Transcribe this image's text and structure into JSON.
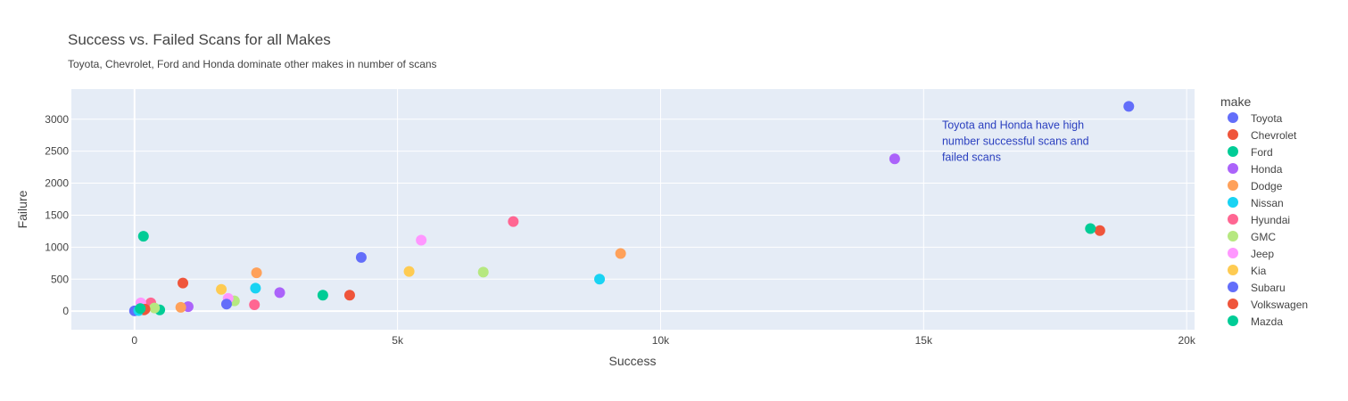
{
  "chart_data": {
    "type": "scatter",
    "title": "Success vs. Failed Scans for all Makes",
    "subtitle": "Toyota, Chevrolet, Ford and Honda dominate other makes in number of scans",
    "xlabel": "Success",
    "ylabel": "Failure",
    "xlim": [
      -1200,
      20150
    ],
    "ylim": [
      -290,
      3470
    ],
    "x_ticks": [
      0,
      5000,
      10000,
      15000,
      20000
    ],
    "x_tick_labels": [
      "0",
      "5k",
      "10k",
      "15k",
      "20k"
    ],
    "y_ticks": [
      0,
      500,
      1000,
      1500,
      2000,
      2500,
      3000
    ],
    "y_tick_labels": [
      "0",
      "500",
      "1000",
      "1500",
      "2000",
      "2500",
      "3000"
    ],
    "grid": true,
    "legend_title": "make",
    "legend_position": "right",
    "annotation": {
      "lines": [
        "Toyota and Honda have high",
        "number successful scans and",
        "failed scans"
      ],
      "x": 15350,
      "y": 2850,
      "color": "#2a3fbf"
    },
    "series": [
      {
        "name": "Toyota",
        "color": "#636efa",
        "points": [
          [
            18900,
            3200
          ],
          [
            0,
            5
          ]
        ]
      },
      {
        "name": "Chevrolet",
        "color": "#ef553b",
        "points": [
          [
            18350,
            1260
          ],
          [
            920,
            440
          ],
          [
            180,
            20
          ]
        ]
      },
      {
        "name": "Ford",
        "color": "#00cc96",
        "points": [
          [
            18170,
            1290
          ],
          [
            170,
            1170
          ],
          [
            3580,
            250
          ],
          [
            480,
            20
          ]
        ]
      },
      {
        "name": "Honda",
        "color": "#ab63fa",
        "points": [
          [
            14450,
            2380
          ],
          [
            2760,
            290
          ],
          [
            1020,
            70
          ]
        ]
      },
      {
        "name": "Dodge",
        "color": "#ffa15a",
        "points": [
          [
            9240,
            900
          ],
          [
            2320,
            600
          ],
          [
            880,
            60
          ]
        ]
      },
      {
        "name": "Nissan",
        "color": "#19d3f3",
        "points": [
          [
            8840,
            500
          ],
          [
            2300,
            360
          ],
          [
            80,
            10
          ]
        ]
      },
      {
        "name": "Hyundai",
        "color": "#ff6692",
        "points": [
          [
            7200,
            1400
          ],
          [
            2280,
            100
          ],
          [
            310,
            130
          ]
        ]
      },
      {
        "name": "GMC",
        "color": "#b6e880",
        "points": [
          [
            6630,
            610
          ],
          [
            1900,
            160
          ],
          [
            380,
            50
          ]
        ]
      },
      {
        "name": "Jeep",
        "color": "#ff97ff",
        "points": [
          [
            5450,
            1110
          ],
          [
            1780,
            200
          ],
          [
            120,
            130
          ]
        ]
      },
      {
        "name": "Kia",
        "color": "#fecb52",
        "points": [
          [
            5220,
            620
          ],
          [
            1650,
            340
          ]
        ]
      },
      {
        "name": "Subaru",
        "color": "#636efa",
        "points": [
          [
            4310,
            840
          ],
          [
            1750,
            110
          ]
        ]
      },
      {
        "name": "Volkswagen",
        "color": "#ef553b",
        "points": [
          [
            4090,
            250
          ],
          [
            200,
            30
          ]
        ]
      },
      {
        "name": "Mazda",
        "color": "#00cc96",
        "points": [
          [
            110,
            40
          ]
        ]
      }
    ]
  }
}
